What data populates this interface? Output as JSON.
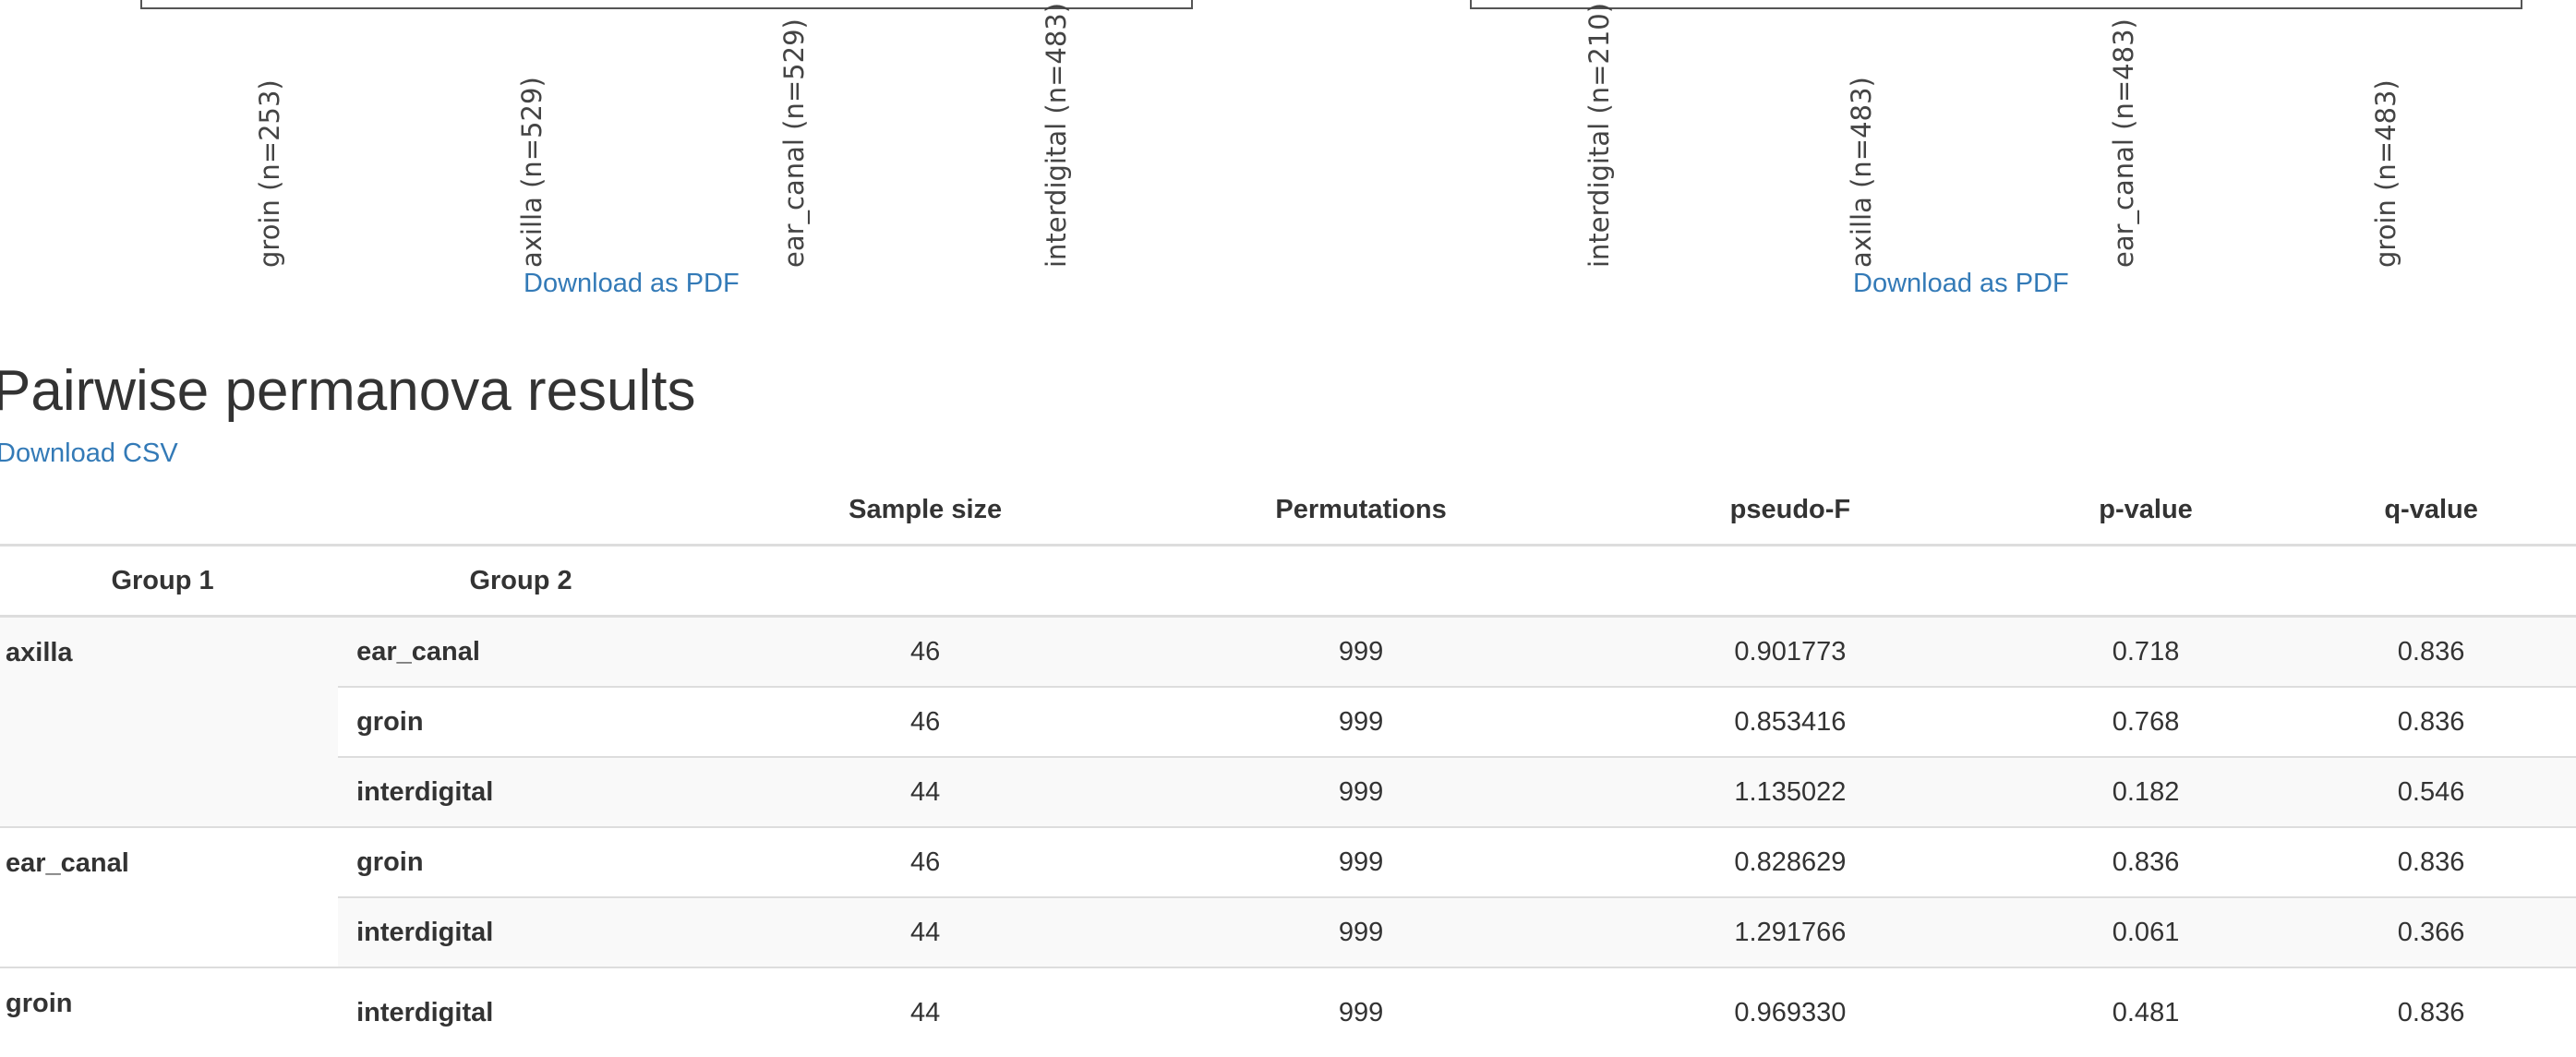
{
  "plots": [
    {
      "ticks": [
        "groin (n=253)",
        "axilla (n=529)",
        "ear_canal (n=529)",
        "interdigital (n=483)"
      ],
      "download_label": "Download as PDF"
    },
    {
      "ticks": [
        "interdigital (n=210)",
        "axilla (n=483)",
        "ear_canal (n=483)",
        "groin (n=483)"
      ],
      "download_label": "Download as PDF"
    }
  ],
  "section": {
    "title": "Pairwise permanova results",
    "download_csv": "Download CSV"
  },
  "table": {
    "headers": [
      "Sample size",
      "Permutations",
      "pseudo-F",
      "p-value",
      "q-value"
    ],
    "group1_header": "Group 1",
    "group2_header": "Group 2",
    "rows": [
      {
        "group1": "axilla",
        "group2": "ear_canal",
        "values": [
          "46",
          "999",
          "0.901773",
          "0.718",
          "0.836"
        ]
      },
      {
        "group1": "",
        "group2": "groin",
        "values": [
          "46",
          "999",
          "0.853416",
          "0.768",
          "0.836"
        ]
      },
      {
        "group1": "",
        "group2": "interdigital",
        "values": [
          "44",
          "999",
          "1.135022",
          "0.182",
          "0.546"
        ]
      },
      {
        "group1": "ear_canal",
        "group2": "groin",
        "values": [
          "46",
          "999",
          "0.828629",
          "0.836",
          "0.836"
        ]
      },
      {
        "group1": "",
        "group2": "interdigital",
        "values": [
          "44",
          "999",
          "1.291766",
          "0.061",
          "0.366"
        ]
      },
      {
        "group1": "groin",
        "group2": "interdigital",
        "values": [
          "44",
          "999",
          "0.969330",
          "0.481",
          "0.836"
        ]
      }
    ]
  }
}
